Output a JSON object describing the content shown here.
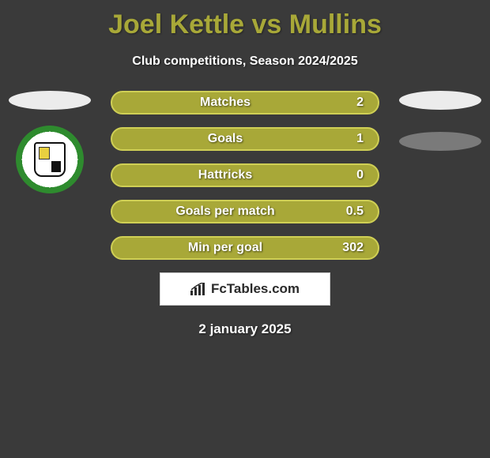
{
  "title": "Joel Kettle vs Mullins",
  "subtitle": "Club competitions, Season 2024/2025",
  "date": "2 january 2025",
  "brand": "FcTables.com",
  "colors": {
    "background": "#3a3a3a",
    "title_color": "#a8a838",
    "text_color": "#ffffff",
    "bar_bg": "#a8a838",
    "bar_border": "#cfcf55",
    "oval_light": "#ececec",
    "oval_dark": "#7a7a7a"
  },
  "left": {
    "oval_color": "#ececec",
    "crest": true
  },
  "right": {
    "oval1_color": "#ececec",
    "oval2_color": "#7a7a7a"
  },
  "stats": [
    {
      "label": "Matches",
      "value": "2"
    },
    {
      "label": "Goals",
      "value": "1"
    },
    {
      "label": "Hattricks",
      "value": "0"
    },
    {
      "label": "Goals per match",
      "value": "0.5"
    },
    {
      "label": "Min per goal",
      "value": "302"
    }
  ],
  "bar_style": {
    "fill": "#a8a838",
    "border": "#cfcf55",
    "height": 30,
    "radius": 16,
    "gap": 16,
    "fontsize": 16
  }
}
